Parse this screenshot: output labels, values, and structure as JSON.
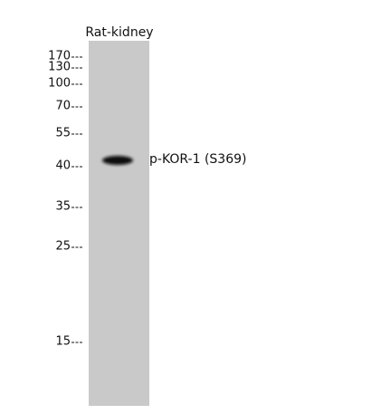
{
  "lane": {
    "label": "Rat-kidney"
  },
  "markers": [
    "170",
    "130",
    "100",
    "70",
    "55",
    "40",
    "35",
    "25",
    "15"
  ],
  "band": {
    "label": "p-KOR-1 (S369)"
  }
}
